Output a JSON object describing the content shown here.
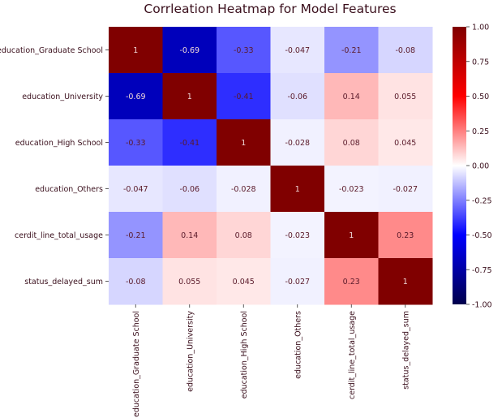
{
  "chart_data": {
    "type": "heatmap",
    "title": "Corrleation Heatmap for Model Features",
    "xlabel": "",
    "ylabel": "",
    "row_labels": [
      "education_Graduate School",
      "education_University",
      "education_High School",
      "education_Others",
      "cerdit_line_total_usage",
      "status_delayed_sum"
    ],
    "col_labels": [
      "education_Graduate School",
      "education_University",
      "education_High School",
      "education_Others",
      "cerdit_line_total_usage",
      "status_delayed_sum"
    ],
    "values": [
      [
        1,
        -0.69,
        -0.33,
        -0.047,
        -0.21,
        -0.08
      ],
      [
        -0.69,
        1,
        -0.41,
        -0.06,
        0.14,
        0.055
      ],
      [
        -0.33,
        -0.41,
        1,
        -0.028,
        0.08,
        0.045
      ],
      [
        -0.047,
        -0.06,
        -0.028,
        1,
        -0.023,
        -0.027
      ],
      [
        -0.21,
        0.14,
        0.08,
        -0.023,
        1,
        0.23
      ],
      [
        -0.08,
        0.055,
        0.045,
        -0.027,
        0.23,
        1
      ]
    ],
    "colormap": "seismic",
    "vmin": -1,
    "vmax": 1,
    "colorbar_ticks": [
      "1.00",
      "0.75",
      "0.50",
      "0.25",
      "0.00",
      "-0.25",
      "-0.50",
      "-0.75",
      "-1.00"
    ],
    "colorbar_tick_values": [
      1.0,
      0.75,
      0.5,
      0.25,
      0.0,
      -0.25,
      -0.5,
      -0.75,
      -1.0
    ],
    "annotate": true,
    "grid": false,
    "text_color": "#5a1a2a",
    "axis_text_color": "#3a0f1c"
  }
}
